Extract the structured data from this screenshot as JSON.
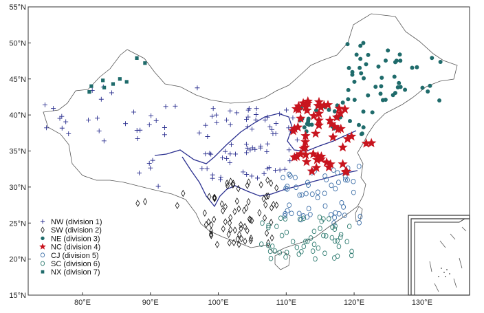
{
  "map": {
    "lon_range": [
      72,
      137
    ],
    "lat_range": [
      15,
      55
    ],
    "x_ticks": [
      "80°E",
      "90°E",
      "100°E",
      "110°E",
      "120°E",
      "130°E"
    ],
    "x_tick_values": [
      80,
      90,
      100,
      110,
      120,
      130
    ],
    "y_ticks": [
      "15°N",
      "20°N",
      "25°N",
      "30°N",
      "35°N",
      "40°N",
      "45°N",
      "50°N",
      "55°N"
    ],
    "y_tick_values": [
      15,
      20,
      25,
      30,
      35,
      40,
      45,
      50,
      55
    ]
  },
  "colors": {
    "nw": "#2a2f8f",
    "sw": "#111111",
    "ne": "#1f6b6b",
    "nc": "#c8141e",
    "cj": "#3d6fa8",
    "sc": "#2e7b70",
    "nx": "#1f6b6b",
    "border": "#555555",
    "river": "#2a2f8f"
  },
  "legend": [
    {
      "symbol": "cross",
      "label": "NW (division 1)",
      "color": "#2a2f8f"
    },
    {
      "symbol": "diamond",
      "label": "SW (division 2)",
      "color": "#111111"
    },
    {
      "symbol": "dot",
      "label": "NE (division 3)",
      "color": "#1f6b6b"
    },
    {
      "symbol": "star",
      "label": "NC (division 4)",
      "color": "#c8141e"
    },
    {
      "symbol": "circle",
      "label": "CJ (division 5)",
      "color": "#3d6fa8"
    },
    {
      "symbol": "ring",
      "label": "SC (division 6)",
      "color": "#2e7b70"
    },
    {
      "symbol": "square",
      "label": "NX (division 7)",
      "color": "#1f6b6b"
    }
  ]
}
